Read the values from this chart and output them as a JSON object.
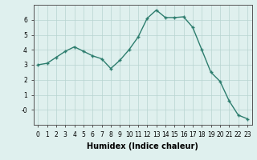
{
  "x": [
    0,
    1,
    2,
    3,
    4,
    5,
    6,
    7,
    8,
    9,
    10,
    11,
    12,
    13,
    14,
    15,
    16,
    17,
    18,
    19,
    20,
    21,
    22,
    23
  ],
  "y": [
    3.0,
    3.1,
    3.5,
    3.9,
    4.2,
    3.9,
    3.6,
    3.4,
    2.75,
    3.3,
    4.0,
    4.85,
    6.1,
    6.65,
    6.15,
    6.15,
    6.2,
    5.5,
    4.0,
    2.5,
    1.9,
    0.6,
    -0.35,
    -0.6
  ],
  "line_color": "#2d7d6e",
  "marker": "+",
  "markersize": 3,
  "linewidth": 1.0,
  "bg_color": "#dff0ee",
  "grid_color": "#b8d4d0",
  "xlabel": "Humidex (Indice chaleur)",
  "ylim": [
    -1,
    7
  ],
  "xlim": [
    -0.5,
    23.5
  ],
  "yticks": [
    0,
    1,
    2,
    3,
    4,
    5,
    6
  ],
  "xticks": [
    0,
    1,
    2,
    3,
    4,
    5,
    6,
    7,
    8,
    9,
    10,
    11,
    12,
    13,
    14,
    15,
    16,
    17,
    18,
    19,
    20,
    21,
    22,
    23
  ],
  "xtick_labels": [
    "0",
    "1",
    "2",
    "3",
    "4",
    "5",
    "6",
    "7",
    "8",
    "9",
    "10",
    "11",
    "12",
    "13",
    "14",
    "15",
    "16",
    "17",
    "18",
    "19",
    "20",
    "21",
    "22",
    "23"
  ],
  "ytick_labels": [
    "-0",
    "1",
    "2",
    "3",
    "4",
    "5",
    "6"
  ],
  "tick_fontsize": 5.5,
  "xlabel_fontsize": 7,
  "spine_color": "#555555"
}
